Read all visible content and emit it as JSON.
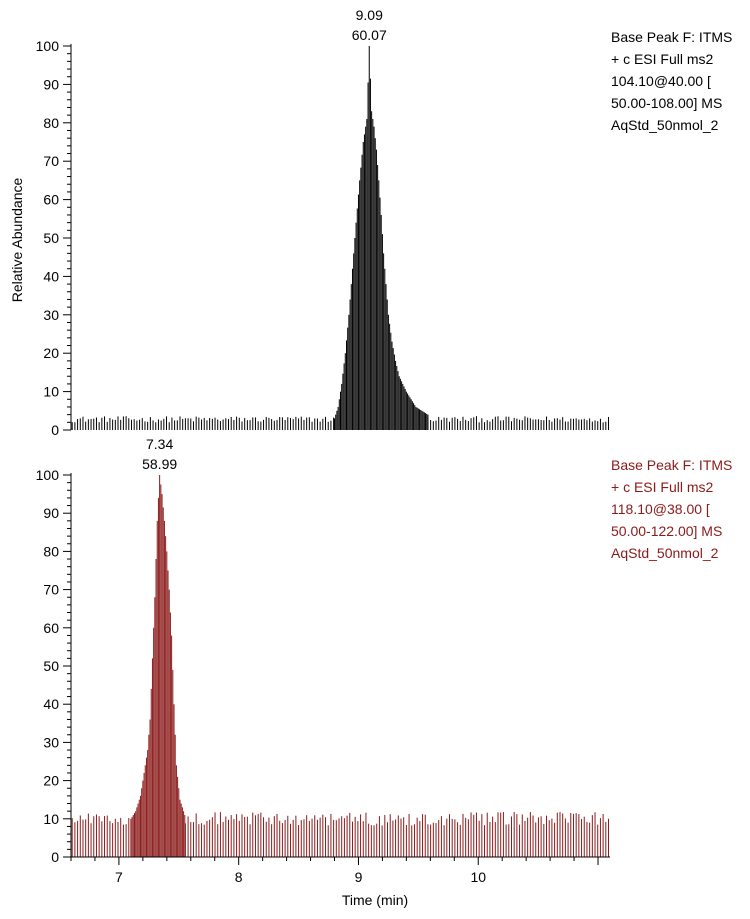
{
  "xlabel": "Time (min)",
  "ylabel": "Relative Abundance",
  "chart_data": [
    {
      "type": "line",
      "xlim": [
        6.6,
        11.1
      ],
      "ylim": [
        0,
        100
      ],
      "yticks": [
        0,
        10,
        20,
        30,
        40,
        50,
        60,
        70,
        80,
        90,
        100
      ],
      "xticks": [
        7,
        8,
        9,
        10
      ],
      "color": "#000000",
      "legend": [
        "Base Peak F: ITMS",
        "+ c ESI Full ms2",
        "104.10@40.00 [",
        "50.00-108.00]  MS",
        "AqStd_50nmol_2"
      ],
      "peak_label": {
        "rt": "9.09",
        "mz": "60.07",
        "x": 9.09,
        "y": 100
      },
      "baseline": 2.8,
      "baseline_jitter": 0.8,
      "peak_points": [
        [
          8.8,
          3
        ],
        [
          8.83,
          6
        ],
        [
          8.86,
          12
        ],
        [
          8.89,
          20
        ],
        [
          8.92,
          30
        ],
        [
          8.95,
          42
        ],
        [
          8.98,
          54
        ],
        [
          9.01,
          65
        ],
        [
          9.04,
          75
        ],
        [
          9.07,
          81
        ],
        [
          9.09,
          100
        ],
        [
          9.11,
          83
        ],
        [
          9.13,
          79
        ],
        [
          9.15,
          73
        ],
        [
          9.17,
          65
        ],
        [
          9.19,
          56
        ],
        [
          9.21,
          46
        ],
        [
          9.23,
          38
        ],
        [
          9.25,
          30
        ],
        [
          9.28,
          23
        ],
        [
          9.31,
          18
        ],
        [
          9.34,
          14
        ],
        [
          9.37,
          12
        ],
        [
          9.4,
          10
        ],
        [
          9.44,
          8
        ],
        [
          9.48,
          6
        ],
        [
          9.53,
          5
        ],
        [
          9.58,
          4
        ]
      ]
    },
    {
      "type": "line",
      "xlim": [
        6.6,
        11.1
      ],
      "ylim": [
        0,
        100
      ],
      "yticks": [
        0,
        10,
        20,
        30,
        40,
        50,
        60,
        70,
        80,
        90,
        100
      ],
      "xticks": [
        7,
        8,
        9,
        10
      ],
      "color": "#8b1a1a",
      "legend": [
        "Base Peak F: ITMS",
        "+ c ESI Full ms2",
        "118.10@38.00 [",
        "50.00-122.00]  MS",
        "AqStd_50nmol_2"
      ],
      "peak_label": {
        "rt": "7.34",
        "mz": "58.99",
        "x": 7.34,
        "y": 100
      },
      "baseline": 10,
      "baseline_jitter": 1.8,
      "peak_points": [
        [
          7.1,
          10
        ],
        [
          7.14,
          12
        ],
        [
          7.18,
          16
        ],
        [
          7.21,
          22
        ],
        [
          7.24,
          28
        ],
        [
          7.26,
          36
        ],
        [
          7.28,
          52
        ],
        [
          7.3,
          68
        ],
        [
          7.32,
          88
        ],
        [
          7.34,
          100
        ],
        [
          7.36,
          95
        ],
        [
          7.38,
          88
        ],
        [
          7.4,
          80
        ],
        [
          7.42,
          70
        ],
        [
          7.44,
          58
        ],
        [
          7.46,
          40
        ],
        [
          7.48,
          24
        ],
        [
          7.51,
          15
        ],
        [
          7.55,
          11
        ]
      ]
    }
  ]
}
